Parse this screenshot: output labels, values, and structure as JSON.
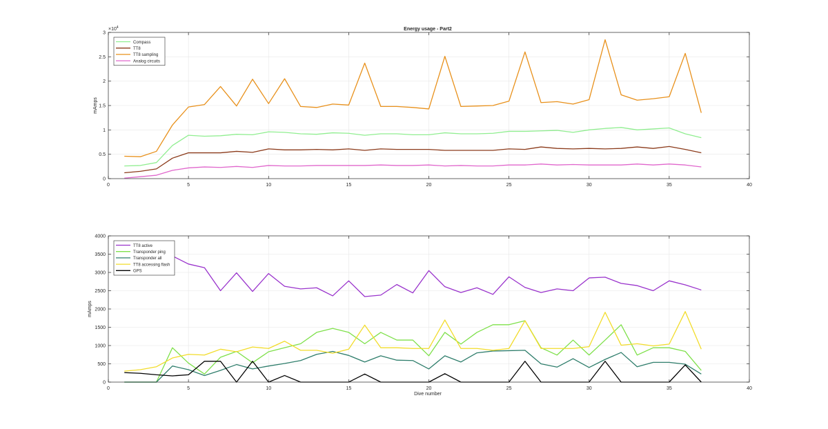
{
  "chart_data": [
    {
      "type": "line",
      "title": "Energy usage - Part2",
      "xlabel": "",
      "ylabel": "mAmps",
      "y_exponent_label": "×10",
      "y_exponent_power": "4",
      "xlim": [
        0,
        40
      ],
      "ylim": [
        0,
        30000
      ],
      "xticks": [
        0,
        5,
        10,
        15,
        20,
        25,
        30,
        35,
        40
      ],
      "yticks": [
        0,
        5000,
        10000,
        15000,
        20000,
        25000,
        30000
      ],
      "ytick_labels": [
        "0",
        "0.5",
        "1",
        "1.5",
        "2",
        "2.5",
        "3"
      ],
      "grid": true,
      "legend_location": "top-left",
      "x": [
        1,
        2,
        3,
        4,
        5,
        6,
        7,
        8,
        9,
        10,
        11,
        12,
        13,
        14,
        15,
        16,
        17,
        18,
        19,
        20,
        21,
        22,
        23,
        24,
        25,
        26,
        27,
        28,
        29,
        30,
        31,
        32,
        33,
        34,
        35,
        36,
        37
      ],
      "series": [
        {
          "name": "Compass",
          "color": "#90ee90",
          "values": [
            2600,
            2700,
            3300,
            6800,
            8900,
            8700,
            8800,
            9100,
            9000,
            9600,
            9500,
            9200,
            9100,
            9400,
            9300,
            8900,
            9200,
            9200,
            9000,
            9000,
            9400,
            9200,
            9200,
            9300,
            9700,
            9700,
            9800,
            9900,
            9500,
            10000,
            10300,
            10500,
            10000,
            10200,
            10400,
            9200,
            8400
          ]
        },
        {
          "name": "TT8",
          "color": "#8b3a1a",
          "values": [
            1200,
            1500,
            2000,
            4200,
            5300,
            5300,
            5300,
            5600,
            5400,
            6100,
            5900,
            5900,
            6000,
            5900,
            6100,
            5800,
            6100,
            6000,
            6000,
            6000,
            5800,
            5800,
            5800,
            5800,
            6100,
            6000,
            6500,
            6200,
            6100,
            6200,
            6100,
            6200,
            6500,
            6200,
            6600,
            6000,
            5300
          ]
        },
        {
          "name": "TT8 sampling",
          "color": "#e8901a",
          "values": [
            4600,
            4500,
            5600,
            11000,
            14700,
            15200,
            18900,
            14900,
            20400,
            15400,
            20500,
            14800,
            14600,
            15300,
            15100,
            23700,
            14800,
            14800,
            14600,
            14300,
            25100,
            14800,
            14900,
            15000,
            15900,
            26000,
            15600,
            15800,
            15300,
            16200,
            28500,
            17200,
            16100,
            16400,
            16800,
            25700,
            13500
          ]
        },
        {
          "name": "Analog circuits",
          "color": "#e066cc",
          "values": [
            100,
            400,
            700,
            1700,
            2200,
            2400,
            2300,
            2500,
            2300,
            2700,
            2600,
            2600,
            2700,
            2700,
            2700,
            2700,
            2800,
            2700,
            2700,
            2800,
            2600,
            2700,
            2600,
            2600,
            2800,
            2800,
            3000,
            2800,
            2900,
            2800,
            2800,
            2800,
            3000,
            2800,
            3000,
            2800,
            2400
          ]
        }
      ]
    },
    {
      "type": "line",
      "title": "",
      "xlabel": "Dive number",
      "ylabel": "mAmps",
      "xlim": [
        0,
        40
      ],
      "ylim": [
        0,
        4000
      ],
      "xticks": [
        0,
        5,
        10,
        15,
        20,
        25,
        30,
        35,
        40
      ],
      "yticks": [
        0,
        500,
        1000,
        1500,
        2000,
        2500,
        3000,
        3500,
        4000
      ],
      "ytick_labels": [
        "0",
        "500",
        "1000",
        "1500",
        "2000",
        "2500",
        "3000",
        "3500",
        "4000"
      ],
      "grid": true,
      "legend_location": "top-left",
      "x": [
        1,
        2,
        3,
        4,
        5,
        6,
        7,
        8,
        9,
        10,
        11,
        12,
        13,
        14,
        15,
        16,
        17,
        18,
        19,
        20,
        21,
        22,
        23,
        24,
        25,
        26,
        27,
        28,
        29,
        30,
        31,
        32,
        33,
        34,
        35,
        36,
        37
      ],
      "series": [
        {
          "name": "TT8 active",
          "color": "#9932cc",
          "values": [
            null,
            null,
            null,
            3450,
            3230,
            3130,
            2500,
            2990,
            2480,
            2970,
            2620,
            2550,
            2580,
            2360,
            2770,
            2340,
            2380,
            2670,
            2440,
            3050,
            2610,
            2450,
            2580,
            2400,
            2880,
            2590,
            2450,
            2550,
            2500,
            2850,
            2870,
            2700,
            2640,
            2500,
            2770,
            2660,
            2520
          ]
        },
        {
          "name": "Transponder ping",
          "color": "#7ee04a",
          "values": [
            0,
            0,
            0,
            940,
            520,
            220,
            680,
            840,
            530,
            830,
            940,
            1050,
            1360,
            1470,
            1360,
            1050,
            1360,
            1150,
            1150,
            720,
            1360,
            1040,
            1360,
            1570,
            1570,
            1680,
            940,
            740,
            1150,
            740,
            1150,
            1570,
            740,
            940,
            940,
            840,
            320
          ]
        },
        {
          "name": "Transponder all",
          "color": "#2e7d6b",
          "values": [
            0,
            0,
            0,
            440,
            340,
            180,
            320,
            480,
            360,
            440,
            510,
            590,
            760,
            840,
            730,
            550,
            720,
            600,
            590,
            360,
            720,
            550,
            800,
            850,
            860,
            870,
            500,
            410,
            640,
            400,
            620,
            810,
            420,
            540,
            540,
            490,
            220
          ]
        },
        {
          "name": "TT8 accessing flash",
          "color": "#f2dc2a",
          "values": [
            300,
            340,
            420,
            660,
            760,
            740,
            900,
            830,
            960,
            920,
            1120,
            870,
            870,
            790,
            900,
            1560,
            940,
            940,
            920,
            920,
            1700,
            920,
            920,
            870,
            920,
            1680,
            920,
            920,
            920,
            970,
            1910,
            1010,
            1050,
            990,
            1040,
            1930,
            900
          ]
        },
        {
          "name": "GPS",
          "color": "#000000",
          "values": [
            260,
            240,
            200,
            170,
            200,
            570,
            570,
            0,
            570,
            0,
            180,
            0,
            0,
            0,
            0,
            220,
            0,
            0,
            0,
            0,
            230,
            0,
            0,
            0,
            0,
            570,
            0,
            0,
            0,
            0,
            570,
            0,
            0,
            0,
            0,
            470,
            0
          ]
        }
      ]
    }
  ]
}
